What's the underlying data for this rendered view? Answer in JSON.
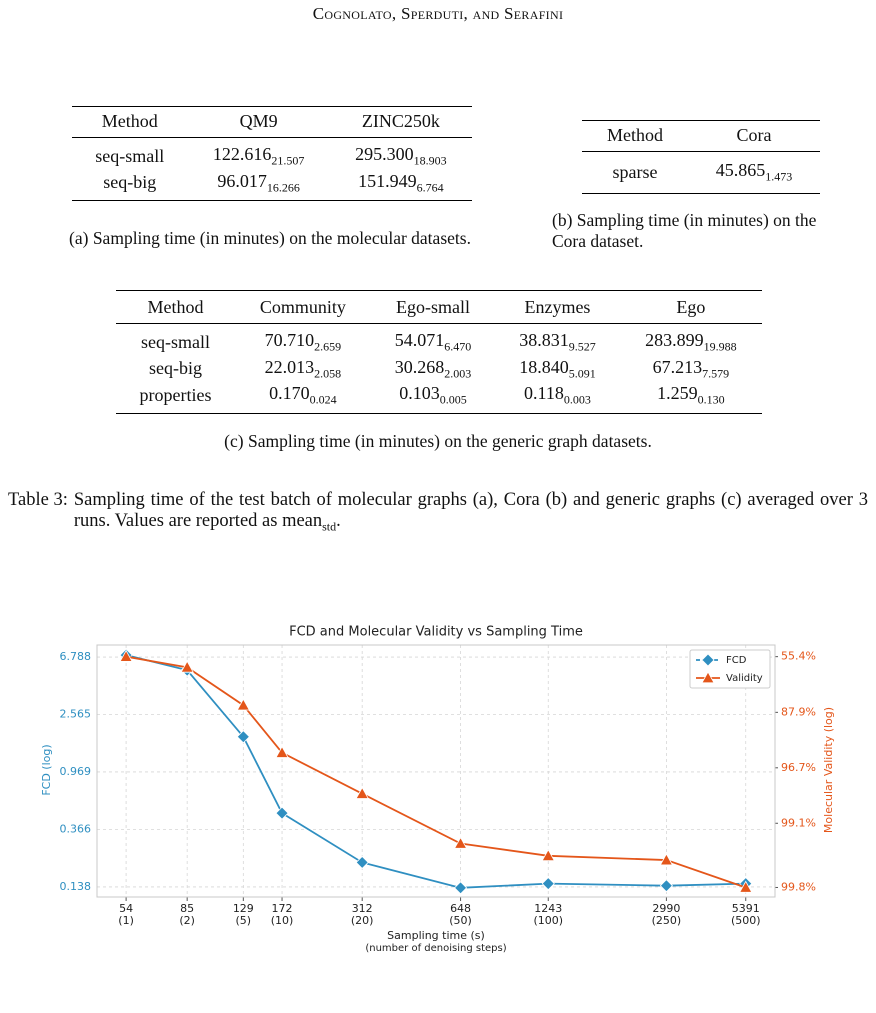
{
  "header": "Cognolato, Sperduti, and Serafini",
  "tables": [
    {
      "columns": [
        "Method",
        "QM9",
        "ZINC250k"
      ],
      "rows": [
        [
          "seq-small",
          {
            "mean": "122.616",
            "std": "21.507"
          },
          {
            "mean": "295.300",
            "std": "18.903"
          }
        ],
        [
          "seq-big",
          {
            "mean": "96.017",
            "std": "16.266"
          },
          {
            "mean": "151.949",
            "std": "6.764"
          }
        ]
      ],
      "caption": "(a) Sampling time (in minutes) on the molecular datasets."
    },
    {
      "columns": [
        "Method",
        "Cora"
      ],
      "rows": [
        [
          "sparse",
          {
            "mean": "45.865",
            "std": "1.473"
          }
        ]
      ],
      "caption": "(b) Sampling time (in minutes) on the Cora dataset."
    },
    {
      "columns": [
        "Method",
        "Community",
        "Ego-small",
        "Enzymes",
        "Ego"
      ],
      "rows": [
        [
          "seq-small",
          {
            "mean": "70.710",
            "std": "2.659"
          },
          {
            "mean": "54.071",
            "std": "6.470"
          },
          {
            "mean": "38.831",
            "std": "9.527"
          },
          {
            "mean": "283.899",
            "std": "19.988"
          }
        ],
        [
          "seq-big",
          {
            "mean": "22.013",
            "std": "2.058"
          },
          {
            "mean": "30.268",
            "std": "2.003"
          },
          {
            "mean": "18.840",
            "std": "5.091"
          },
          {
            "mean": "67.213",
            "std": "7.579"
          }
        ],
        [
          "properties",
          {
            "mean": "0.170",
            "std": "0.024"
          },
          {
            "mean": "0.103",
            "std": "0.005"
          },
          {
            "mean": "0.118",
            "std": "0.003"
          },
          {
            "mean": "1.259",
            "std": "0.130"
          }
        ]
      ],
      "caption": "(c) Sampling time (in minutes) on the generic graph datasets."
    }
  ],
  "table_caption": {
    "label": "Table 3:",
    "text": "Sampling time of the test batch of molecular graphs (a), Cora (b) and generic graphs (c) averaged over 3 runs. Values are reported as ",
    "mean": "mean",
    "std": "std",
    "end": "."
  },
  "chart_data": {
    "type": "line",
    "title": "FCD and Molecular Validity vs Sampling Time",
    "x_label": "Sampling time (s)",
    "x_sublabel": "(number of denoising steps)",
    "y_label": "FCD (log)",
    "y2_label": "Molecular Validity (log)",
    "x": [
      54,
      85,
      129,
      172,
      312,
      648,
      1243,
      2990,
      5391
    ],
    "xscale": "log",
    "xlim": [
      43.5,
      6700
    ],
    "xticks": [
      54,
      85,
      129,
      172,
      312,
      648,
      1243,
      2990,
      5391
    ],
    "xtick_sublabels": [
      "(1)",
      "(2)",
      "(5)",
      "(10)",
      "(20)",
      "(50)",
      "(100)",
      "(250)",
      "(500)"
    ],
    "yscale": "log",
    "ylim": [
      0.1164,
      8.33
    ],
    "yticks": [
      0.138,
      0.366,
      0.969,
      2.565,
      6.788
    ],
    "y2scale": "log-complement",
    "y2lim": [
      99.84,
      41.4
    ],
    "y2ticks": [
      {
        "value": 99.8,
        "label": "99.8%"
      },
      {
        "value": 99.1,
        "label": "99.1%"
      },
      {
        "value": 96.7,
        "label": "96.7%"
      },
      {
        "value": 87.9,
        "label": "87.9%"
      },
      {
        "value": 55.4,
        "label": "55.4%"
      }
    ],
    "grid": true,
    "legend": "upper right",
    "series": [
      {
        "name": "FCD",
        "color": "#2f8fc1",
        "marker": "diamond",
        "values": [
          7.02,
          5.44,
          1.76,
          0.482,
          0.209,
          0.136,
          0.146,
          0.141,
          0.146
        ]
      },
      {
        "name": "Validity",
        "color": "#e4561a",
        "marker": "triangle",
        "axis": "y2",
        "values": [
          55.4,
          65.3,
          85.7,
          95.3,
          98.2,
          99.44,
          99.58,
          99.62,
          99.8
        ]
      }
    ]
  }
}
